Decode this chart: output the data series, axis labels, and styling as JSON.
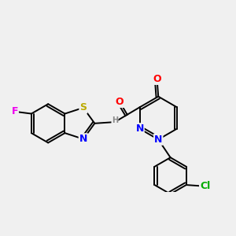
{
  "background_color": "#f0f0f0",
  "bond_color": "#000000",
  "atom_colors": {
    "F": "#ee00ee",
    "S": "#bbaa00",
    "N": "#0000ff",
    "O": "#ff0000",
    "Cl": "#00aa00",
    "H": "#888888",
    "C": "#000000"
  },
  "font_size": 8,
  "fig_size": [
    3.0,
    3.0
  ],
  "dpi": 100
}
